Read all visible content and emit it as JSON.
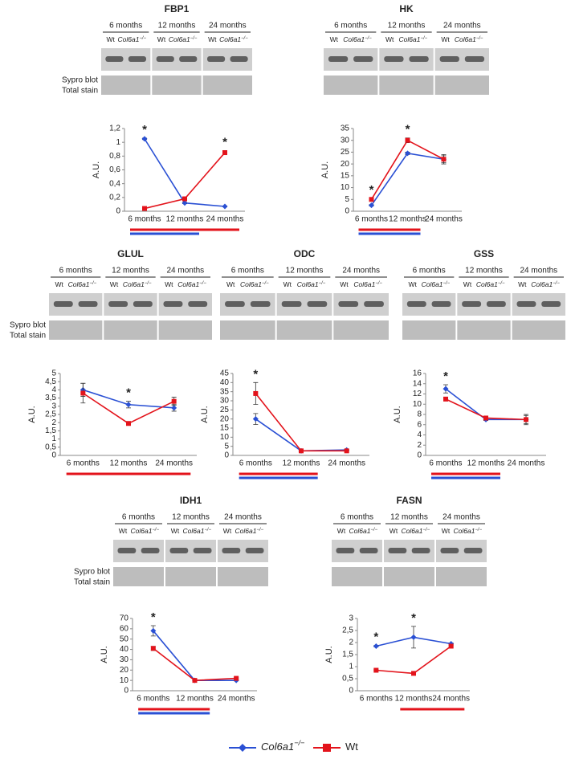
{
  "chart_data": [
    {
      "type": "line",
      "title": "FBP1",
      "groups": [
        "6 months",
        "12 months",
        "24 months"
      ],
      "lanes": [
        {
          "text": "Wt"
        },
        {
          "text": "Col6a1",
          "sup": "−/−"
        }
      ],
      "stain_label": [
        "Sypro blot",
        "Total stain"
      ],
      "y_label": "A.U.",
      "categories": [
        "6 months",
        "12 months",
        "24 months"
      ],
      "ylim": [
        0,
        1.2
      ],
      "yticks": [
        0,
        {
          "value": 0.2,
          "label": "0,2"
        },
        {
          "value": 0.4,
          "label": "0,4"
        },
        {
          "value": 0.6,
          "label": "0,6"
        },
        {
          "value": 0.8,
          "label": "0,8"
        },
        1,
        {
          "value": 1.2,
          "label": "1,2"
        }
      ],
      "series": [
        {
          "color": "#2a50d4",
          "values": [
            1.05,
            0.12,
            0.07
          ],
          "errors": [
            0.01,
            0.01,
            0.005
          ]
        },
        {
          "color": "#e3131b",
          "values": [
            0.04,
            0.18,
            0.85
          ],
          "errors": [
            0.005,
            0.02,
            0.03
          ]
        }
      ],
      "annotations": [
        {
          "category": 0,
          "text": "*"
        },
        {
          "category": 2,
          "text": "*"
        }
      ],
      "comparisons": [
        {
          "from": 0,
          "to": 1,
          "series": [
            1,
            0
          ]
        },
        {
          "from": 1,
          "to": 2,
          "series": [
            1
          ]
        }
      ]
    },
    {
      "type": "line",
      "title": "HK",
      "groups": [
        "6 months",
        "12 months",
        "24 months"
      ],
      "lanes": [
        {
          "text": "Wt"
        },
        {
          "text": "Col6a1",
          "sup": "−/−"
        }
      ],
      "y_label": "A.U.",
      "categories": [
        "6 months",
        "12 months",
        "24 months"
      ],
      "ylim": [
        0,
        35
      ],
      "yticks": [
        0,
        5,
        10,
        15,
        20,
        25,
        30,
        35
      ],
      "series": [
        {
          "color": "#2a50d4",
          "values": [
            2.5,
            24.5,
            22
          ],
          "errors": [
            0.3,
            0.5,
            1.5
          ]
        },
        {
          "color": "#e3131b",
          "values": [
            5,
            30,
            22
          ],
          "errors": [
            0.4,
            1,
            2
          ]
        }
      ],
      "annotations": [
        {
          "category": 0,
          "text": "*"
        },
        {
          "category": 1,
          "text": "*"
        }
      ],
      "comparisons": [
        {
          "from": 0,
          "to": 1,
          "series": [
            1,
            0
          ]
        }
      ]
    },
    {
      "type": "line",
      "title": "GLUL",
      "groups": [
        "6 months",
        "12 months",
        "24 months"
      ],
      "lanes": [
        {
          "text": "Wt"
        },
        {
          "text": "Col6a1",
          "sup": "−/−"
        }
      ],
      "stain_label": [
        "Sypro blot",
        "Total stain"
      ],
      "y_label": "A.U.",
      "categories": [
        "6 months",
        "12 months",
        "24 months"
      ],
      "ylim": [
        0,
        5
      ],
      "yticks": [
        0,
        {
          "value": 0.5,
          "label": "0,5"
        },
        1,
        {
          "value": 1.5,
          "label": "1,5"
        },
        2,
        {
          "value": 2.5,
          "label": "2,5"
        },
        3,
        {
          "value": 3.5,
          "label": "3,5"
        },
        4,
        {
          "value": 4.5,
          "label": "4,5"
        },
        5
      ],
      "series": [
        {
          "color": "#2a50d4",
          "values": [
            4,
            3.1,
            2.9
          ],
          "errors": [
            0.4,
            0.2,
            0.2
          ]
        },
        {
          "color": "#e3131b",
          "values": [
            3.8,
            1.95,
            3.3
          ],
          "errors": [
            0.6,
            0.05,
            0.25
          ]
        }
      ],
      "annotations": [
        {
          "category": 1,
          "text": "*"
        }
      ],
      "comparisons": [
        {
          "from": 0,
          "to": 1,
          "series": [
            1
          ]
        },
        {
          "from": 1,
          "to": 2,
          "series": [
            1
          ]
        }
      ]
    },
    {
      "type": "line",
      "title": "ODC",
      "groups": [
        "6 months",
        "12 months",
        "24 months"
      ],
      "lanes": [
        {
          "text": "Wt"
        },
        {
          "text": "Col6a1",
          "sup": "−/−"
        }
      ],
      "y_label": "A.U.",
      "categories": [
        "6 months",
        "12 months",
        "24 months"
      ],
      "ylim": [
        0,
        45
      ],
      "yticks": [
        0,
        5,
        10,
        15,
        20,
        25,
        30,
        35,
        40,
        45
      ],
      "series": [
        {
          "color": "#2a50d4",
          "values": [
            20,
            2.5,
            3
          ],
          "errors": [
            3,
            0.3,
            0.3
          ]
        },
        {
          "color": "#e3131b",
          "values": [
            34,
            2.5,
            2.5
          ],
          "errors": [
            6,
            0.3,
            0.3
          ]
        }
      ],
      "annotations": [
        {
          "category": 0,
          "text": "*"
        }
      ],
      "comparisons": [
        {
          "from": 0,
          "to": 1,
          "series": [
            1,
            0
          ]
        }
      ]
    },
    {
      "type": "line",
      "title": "GSS",
      "groups": [
        "6 months",
        "12 months",
        "24 months"
      ],
      "lanes": [
        {
          "text": "Wt"
        },
        {
          "text": "Col6a1",
          "sup": "−/−"
        }
      ],
      "y_label": "A.U.",
      "categories": [
        "6 months",
        "12 months",
        "24 months"
      ],
      "ylim": [
        0,
        16
      ],
      "yticks": [
        0,
        2,
        4,
        6,
        8,
        10,
        12,
        14,
        16
      ],
      "series": [
        {
          "color": "#2a50d4",
          "values": [
            13,
            7,
            7
          ],
          "errors": [
            0.8,
            0.2,
            0.8
          ]
        },
        {
          "color": "#e3131b",
          "values": [
            11,
            7.3,
            7
          ],
          "errors": [
            0.2,
            0.2,
            1
          ]
        }
      ],
      "annotations": [
        {
          "category": 0,
          "text": "*"
        }
      ],
      "comparisons": [
        {
          "from": 0,
          "to": 1,
          "series": [
            1,
            0
          ]
        }
      ]
    },
    {
      "type": "line",
      "title": "IDH1",
      "groups": [
        "6 months",
        "12 months",
        "24 months"
      ],
      "lanes": [
        {
          "text": "Wt"
        },
        {
          "text": "Col6a1",
          "sup": "−/−"
        }
      ],
      "stain_label": [
        "Sypro blot",
        "Total stain"
      ],
      "y_label": "A.U.",
      "categories": [
        "6 months",
        "12 months",
        "24 months"
      ],
      "ylim": [
        0,
        70
      ],
      "yticks": [
        0,
        10,
        20,
        30,
        40,
        50,
        60,
        70
      ],
      "series": [
        {
          "color": "#2a50d4",
          "values": [
            58,
            10,
            10
          ],
          "errors": [
            5,
            0.5,
            0.5
          ]
        },
        {
          "color": "#e3131b",
          "values": [
            41,
            10,
            12
          ],
          "errors": [
            2,
            0.5,
            0.5
          ]
        }
      ],
      "annotations": [
        {
          "category": 0,
          "text": "*"
        }
      ],
      "comparisons": [
        {
          "from": 0,
          "to": 1,
          "series": [
            1,
            0
          ]
        }
      ]
    },
    {
      "type": "line",
      "title": "FASN",
      "groups": [
        "6 months",
        "12 months",
        "24 months"
      ],
      "lanes": [
        {
          "text": "Wt"
        },
        {
          "text": "Col6a1",
          "sup": "−/−"
        }
      ],
      "y_label": "A.U.",
      "categories": [
        "6 months",
        "12 months",
        "24 months"
      ],
      "ylim": [
        0,
        3
      ],
      "yticks": [
        0,
        {
          "value": 0.5,
          "label": "0,5"
        },
        1,
        {
          "value": 1.5,
          "label": "1,5"
        },
        2,
        {
          "value": 2.5,
          "label": "2,5"
        },
        3
      ],
      "series": [
        {
          "color": "#2a50d4",
          "values": [
            1.85,
            2.22,
            1.95
          ],
          "errors": [
            0.03,
            0.45,
            0.03
          ]
        },
        {
          "color": "#e3131b",
          "values": [
            0.85,
            0.72,
            1.85
          ],
          "errors": [
            0.02,
            0.02,
            0.03
          ]
        }
      ],
      "annotations": [
        {
          "category": 0,
          "text": "*"
        },
        {
          "category": 1,
          "text": "*"
        }
      ],
      "comparisons": [
        {
          "from": 1,
          "to": 2,
          "series": [
            1
          ]
        }
      ]
    }
  ],
  "legend": [
    {
      "text": "Col6a1",
      "sup": "−/−",
      "color": "#2a50d4",
      "marker": "diamond"
    },
    {
      "text": "Wt",
      "color": "#e3131b",
      "marker": "square"
    }
  ]
}
